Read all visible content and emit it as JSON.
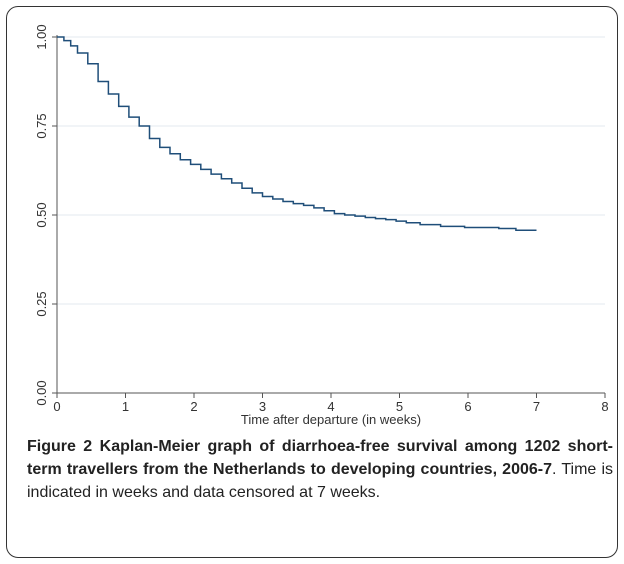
{
  "chart_data": {
    "type": "line",
    "xlabel": "Time after departure (in weeks)",
    "ylabel": "",
    "xlim": [
      0,
      8
    ],
    "ylim": [
      0,
      1
    ],
    "x_ticks": [
      "0",
      "1",
      "2",
      "3",
      "4",
      "5",
      "6",
      "7",
      "8"
    ],
    "y_ticks": [
      "0.00",
      "0.25",
      "0.50",
      "0.75",
      "1.00"
    ],
    "grid": "horizontal",
    "step": true,
    "series": [
      {
        "x": [
          0,
          0.1,
          0.2,
          0.3,
          0.45,
          0.6,
          0.75,
          0.9,
          1.05,
          1.2,
          1.35,
          1.5,
          1.65,
          1.8,
          1.95,
          2.1,
          2.25,
          2.4,
          2.55,
          2.7,
          2.85,
          3.0,
          3.15,
          3.3,
          3.45,
          3.6,
          3.75,
          3.9,
          4.05,
          4.2,
          4.35,
          4.5,
          4.65,
          4.8,
          4.95,
          5.1,
          5.3,
          5.6,
          5.95,
          6.45,
          6.7,
          7.0
        ],
        "y": [
          1.0,
          0.99,
          0.975,
          0.955,
          0.925,
          0.875,
          0.84,
          0.805,
          0.775,
          0.75,
          0.715,
          0.69,
          0.672,
          0.655,
          0.642,
          0.628,
          0.615,
          0.602,
          0.59,
          0.575,
          0.562,
          0.552,
          0.545,
          0.538,
          0.532,
          0.527,
          0.52,
          0.512,
          0.504,
          0.5,
          0.497,
          0.493,
          0.49,
          0.487,
          0.483,
          0.478,
          0.473,
          0.468,
          0.465,
          0.462,
          0.457,
          0.457
        ]
      }
    ]
  },
  "caption": {
    "label": "Figure 2",
    "title": "Kaplan-Meier graph of diarrhoea-free survival among 1202 short-term travellers from the Netherlands to developing countries, 2006-7",
    "text": ". Time is indicated in weeks and data censored at 7 weeks."
  },
  "colors": {
    "line": "#1f4e79",
    "grid": "#e3e9ef",
    "axis": "#555555"
  }
}
